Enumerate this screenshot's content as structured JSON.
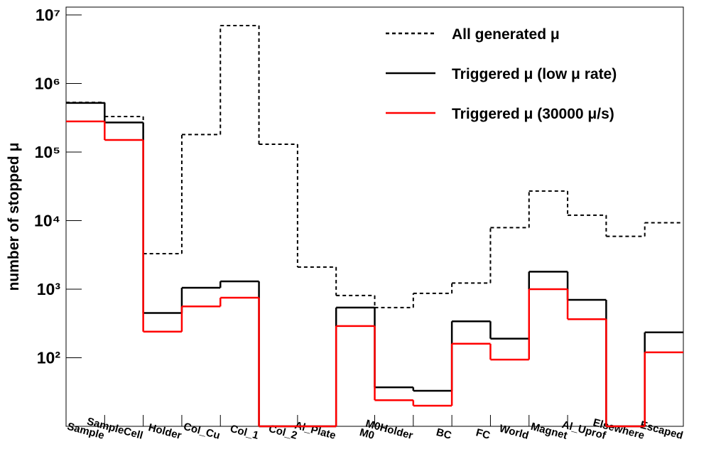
{
  "chart_data": {
    "type": "histogram-steps",
    "ylabel": "number of stopped μ",
    "categories": [
      "Sample",
      "SampleCell",
      "Holder",
      "Col_Cu",
      "Col_1",
      "Col_2",
      "Al_Plate",
      "M0",
      "M0Holder",
      "BC",
      "FC",
      "World",
      "Magnet",
      "Al_Uprof",
      "Elsewhere",
      "Escaped"
    ],
    "series": [
      {
        "name": "All generated μ",
        "color": "#000000",
        "dashed": true,
        "values": [
          530000,
          330000,
          3300,
          180000,
          7000000,
          130000,
          2100,
          810,
          540,
          870,
          1230,
          7900,
          27000,
          12000,
          5900,
          9300
        ]
      },
      {
        "name": "Triggered μ (low μ rate)",
        "color": "#000000",
        "dashed": false,
        "values": [
          520000,
          270000,
          450,
          1050,
          1300,
          0,
          0,
          540,
          37,
          33,
          340,
          190,
          1800,
          700,
          0,
          235
        ]
      },
      {
        "name": "Triggered μ (30000 μ/s)",
        "color": "#ff0000",
        "dashed": false,
        "values": [
          280000,
          150000,
          240,
          560,
          750,
          0,
          0,
          290,
          24,
          20,
          160,
          94,
          1000,
          365,
          0,
          120
        ]
      }
    ],
    "log_y": true,
    "ylim": [
      10,
      13000000
    ],
    "yticks": [
      {
        "value": 100,
        "label": "10²"
      },
      {
        "value": 1000,
        "label": "10³"
      },
      {
        "value": 10000,
        "label": "10⁴"
      },
      {
        "value": 100000,
        "label": "10⁵"
      },
      {
        "value": 1000000,
        "label": "10⁶"
      },
      {
        "value": 10000000,
        "label": "10⁷"
      }
    ],
    "legend": "top-right"
  }
}
